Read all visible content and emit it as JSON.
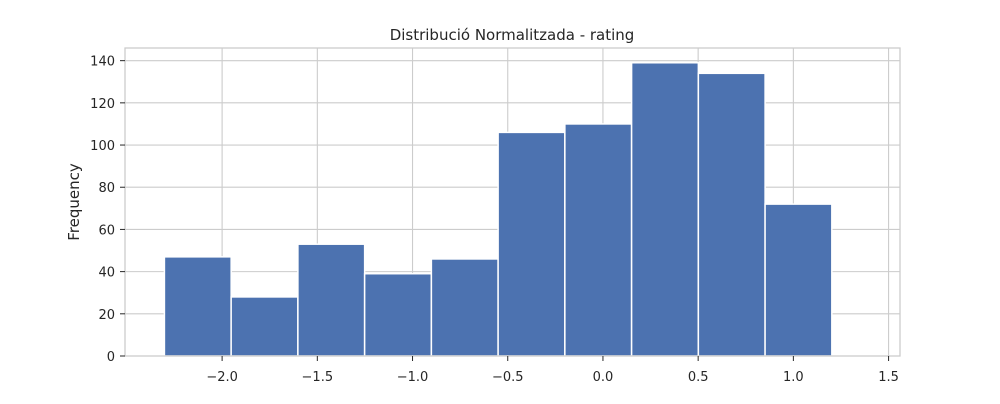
{
  "chart_data": {
    "type": "bar",
    "title": "Distribució Normalitzada - rating",
    "xlabel": "",
    "ylabel": "Frequency",
    "bin_edges": [
      -2.303,
      -1.9525,
      -1.602,
      -1.2515,
      -0.901,
      -0.5505,
      -0.2,
      0.1505,
      0.501,
      0.8515,
      1.202
    ],
    "values": [
      47,
      28,
      53,
      39,
      46,
      106,
      110,
      139,
      134,
      72
    ],
    "xlim": [
      -2.51,
      1.56
    ],
    "ylim": [
      0,
      146
    ],
    "x_ticks": [
      -2.0,
      -1.5,
      -1.0,
      -0.5,
      0.0,
      0.5,
      1.0,
      1.5
    ],
    "x_tick_labels": [
      "−2.0",
      "−1.5",
      "−1.0",
      "−0.5",
      "0.0",
      "0.5",
      "1.0",
      "1.5"
    ],
    "y_ticks": [
      0,
      20,
      40,
      60,
      80,
      100,
      120,
      140
    ],
    "y_tick_labels": [
      "0",
      "20",
      "40",
      "60",
      "80",
      "100",
      "120",
      "140"
    ],
    "grid": true,
    "colors": {
      "bar": "#4c72b0",
      "bar_edge": "#ffffff",
      "grid": "#cccccc",
      "text": "#262626"
    }
  }
}
